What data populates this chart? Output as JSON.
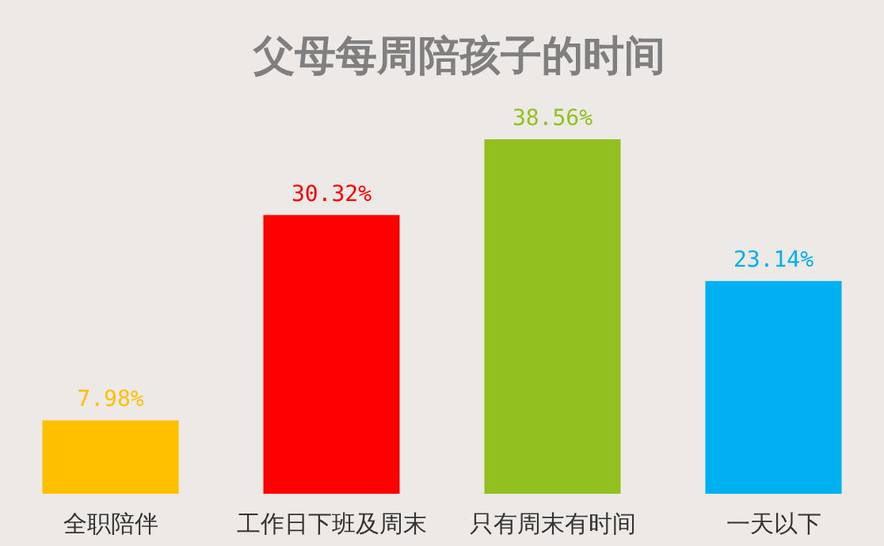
{
  "chart_data": {
    "type": "bar",
    "title": "父母每周陪孩子的时间",
    "categories": [
      "全职陪伴",
      "工作日下班及周末",
      "只有周末有时间",
      "一天以下"
    ],
    "values": [
      7.98,
      30.32,
      38.56,
      23.14
    ],
    "colors": [
      "#ffc000",
      "#ff0000",
      "#92c01f",
      "#00b0f0"
    ],
    "value_labels": [
      "7.98%",
      "30.32%",
      "38.56%",
      "23.14%"
    ]
  }
}
